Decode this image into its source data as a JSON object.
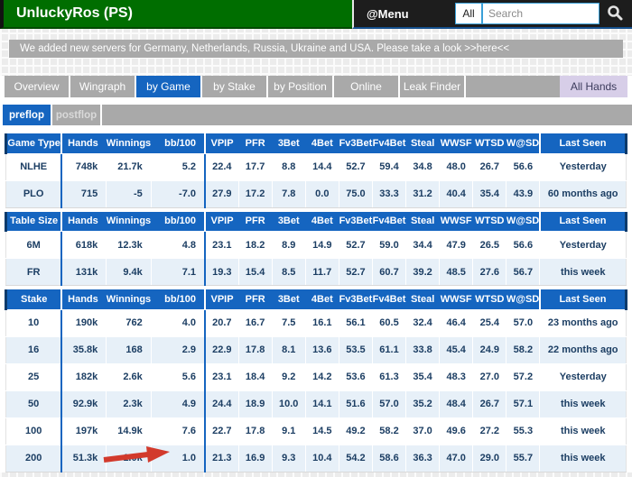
{
  "header": {
    "title": "UnluckyRos (PS)",
    "menu_label": "@Menu",
    "search_scope": "All",
    "search_placeholder": "Search"
  },
  "banner": {
    "text": "We added new servers for Germany, Netherlands, Russia, Ukraine and USA. Please take a look",
    "link": ">>here<<"
  },
  "tabs": [
    {
      "label": "Overview",
      "active": false
    },
    {
      "label": "Wingraph",
      "active": false
    },
    {
      "label": "by Game",
      "active": true
    },
    {
      "label": "by Stake",
      "active": false
    },
    {
      "label": "by Position",
      "active": false
    },
    {
      "label": "Online",
      "active": false
    },
    {
      "label": "Leak Finder",
      "active": false
    }
  ],
  "all_hands_label": "All Hands",
  "subtabs": [
    {
      "label": "preflop",
      "active": true
    },
    {
      "label": "postflop",
      "active": false
    }
  ],
  "columns": [
    "Hands",
    "Winnings",
    "bb/100",
    "VPIP",
    "PFR",
    "3Bet",
    "4Bet",
    "Fv3Bet",
    "Fv4Bet",
    "Steal",
    "WWSF",
    "WTSD",
    "W@SD",
    "Last Seen"
  ],
  "tables": [
    {
      "key_header": "Game Type",
      "rows": [
        {
          "label": "NLHE",
          "values": [
            "748k",
            "21.7k",
            "5.2",
            "22.4",
            "17.7",
            "8.8",
            "14.4",
            "52.7",
            "59.4",
            "34.8",
            "48.0",
            "26.7",
            "56.6",
            "Yesterday"
          ]
        },
        {
          "label": "PLO",
          "values": [
            "715",
            "-5",
            "-7.0",
            "27.9",
            "17.2",
            "7.8",
            "0.0",
            "75.0",
            "33.3",
            "31.2",
            "40.4",
            "35.4",
            "43.9",
            "60 months ago"
          ]
        }
      ]
    },
    {
      "key_header": "Table Size",
      "rows": [
        {
          "label": "6M",
          "values": [
            "618k",
            "12.3k",
            "4.8",
            "23.1",
            "18.2",
            "8.9",
            "14.9",
            "52.7",
            "59.0",
            "34.4",
            "47.9",
            "26.5",
            "56.6",
            "Yesterday"
          ]
        },
        {
          "label": "FR",
          "values": [
            "131k",
            "9.4k",
            "7.1",
            "19.3",
            "15.4",
            "8.5",
            "11.7",
            "52.7",
            "60.7",
            "39.2",
            "48.5",
            "27.6",
            "56.7",
            "this week"
          ]
        }
      ]
    },
    {
      "key_header": "Stake",
      "rows": [
        {
          "label": "10",
          "values": [
            "190k",
            "762",
            "4.0",
            "20.7",
            "16.7",
            "7.5",
            "16.1",
            "56.1",
            "60.5",
            "32.4",
            "46.4",
            "25.4",
            "57.0",
            "23 months ago"
          ]
        },
        {
          "label": "16",
          "values": [
            "35.8k",
            "168",
            "2.9",
            "22.9",
            "17.8",
            "8.1",
            "13.6",
            "53.5",
            "61.1",
            "33.8",
            "45.4",
            "24.9",
            "58.2",
            "22 months ago"
          ]
        },
        {
          "label": "25",
          "values": [
            "182k",
            "2.6k",
            "5.6",
            "23.1",
            "18.4",
            "9.2",
            "14.2",
            "53.6",
            "61.3",
            "35.4",
            "48.3",
            "27.0",
            "57.2",
            "Yesterday"
          ]
        },
        {
          "label": "50",
          "values": [
            "92.9k",
            "2.3k",
            "4.9",
            "24.4",
            "18.9",
            "10.0",
            "14.1",
            "51.6",
            "57.0",
            "35.2",
            "48.4",
            "26.7",
            "57.1",
            "this week"
          ]
        },
        {
          "label": "100",
          "values": [
            "197k",
            "14.9k",
            "7.6",
            "22.7",
            "17.8",
            "9.1",
            "14.5",
            "49.2",
            "58.2",
            "37.0",
            "49.6",
            "27.2",
            "55.3",
            "this week"
          ]
        },
        {
          "label": "200",
          "values": [
            "51.3k",
            "1.0k",
            "1.0",
            "21.3",
            "16.9",
            "9.3",
            "10.4",
            "54.2",
            "58.6",
            "36.3",
            "47.0",
            "29.0",
            "55.7",
            "this week"
          ]
        }
      ]
    }
  ],
  "annotation": {
    "shape": "red-arrow",
    "points_at": "bb/100 value 1.0 in stake 200 row",
    "color": "#d23a2c"
  },
  "colors": {
    "brand_green": "#006e00",
    "topbar_dark": "#1d1d1d",
    "accent_blue": "#1565c0",
    "tab_gray": "#a9a9a9",
    "banner_gray": "#a9a9a9",
    "row_alt_blue": "#e7f0f8",
    "cell_text_navy": "#1c3e63",
    "all_hands_lavender": "#d7cee8",
    "search_border_blue": "#3aa0d8",
    "arrow_red": "#d23a2c"
  }
}
